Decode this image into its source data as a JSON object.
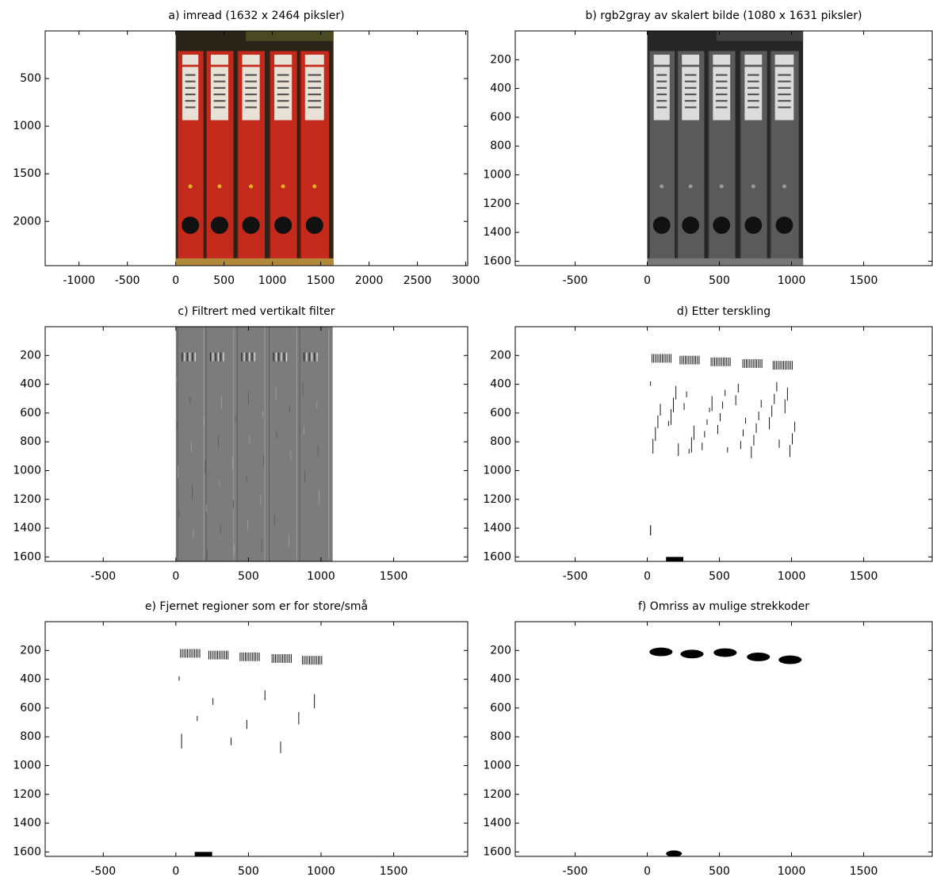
{
  "chart_data": [
    {
      "type": "image",
      "title": "a) imread (1632 x 2464 piksler)",
      "xlim": [
        -1350,
        3020
      ],
      "ylim": [
        0,
        2464
      ],
      "xticks": [
        -1000,
        -500,
        0,
        500,
        1000,
        1500,
        2000,
        2500,
        3000
      ],
      "yticks": [
        500,
        1000,
        1500,
        2000
      ]
    },
    {
      "type": "image",
      "title": "b) rgb2gray av skalert bilde (1080 x 1631 piksler)",
      "xlim": [
        -915,
        1975
      ],
      "ylim": [
        0,
        1631
      ],
      "xticks": [
        -500,
        0,
        500,
        1000,
        1500
      ],
      "yticks": [
        200,
        400,
        600,
        800,
        1000,
        1200,
        1400,
        1600
      ]
    },
    {
      "type": "image",
      "title": "c) Filtrert med vertikalt filter",
      "xlim": [
        -900,
        2010
      ],
      "ylim": [
        0,
        1631
      ],
      "xticks": [
        -500,
        0,
        500,
        1000,
        1500
      ],
      "yticks": [
        200,
        400,
        600,
        800,
        1000,
        1200,
        1400,
        1600
      ]
    },
    {
      "type": "image",
      "title": "d) Etter terskling",
      "xlim": [
        -915,
        1975
      ],
      "ylim": [
        0,
        1631
      ],
      "xticks": [
        -500,
        0,
        500,
        1000,
        1500
      ],
      "yticks": [
        200,
        400,
        600,
        800,
        1000,
        1200,
        1400,
        1600
      ]
    },
    {
      "type": "image",
      "title": "e) Fjernet regioner som er for store/små",
      "xlim": [
        -900,
        2010
      ],
      "ylim": [
        0,
        1631
      ],
      "xticks": [
        -500,
        0,
        500,
        1000,
        1500
      ],
      "yticks": [
        200,
        400,
        600,
        800,
        1000,
        1200,
        1400,
        1600
      ]
    },
    {
      "type": "image",
      "title": "f) Omriss av mulige strekkoder",
      "xlim": [
        -915,
        1975
      ],
      "ylim": [
        0,
        1631
      ],
      "xticks": [
        -500,
        0,
        500,
        1000,
        1500
      ],
      "yticks": [
        200,
        400,
        600,
        800,
        1000,
        1200,
        1400,
        1600
      ]
    }
  ]
}
